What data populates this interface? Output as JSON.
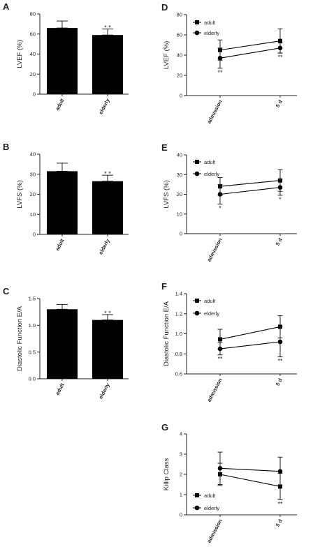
{
  "chart_data": [
    {
      "id": "A",
      "panel_label": "A",
      "type": "bar",
      "categories": [
        "adult",
        "elderly"
      ],
      "values": [
        66,
        59
      ],
      "errors": [
        7,
        6
      ],
      "ylabel": "LVEF (%)",
      "ylim": [
        0,
        80
      ],
      "yticks": [
        "0",
        "20",
        "40",
        "60",
        "80"
      ],
      "annotations": [
        {
          "category": "elderly",
          "text": "* *"
        }
      ]
    },
    {
      "id": "B",
      "panel_label": "B",
      "type": "bar",
      "categories": [
        "adult",
        "elderly"
      ],
      "values": [
        31.5,
        26.5
      ],
      "errors": [
        4,
        3
      ],
      "ylabel": "LVFS (%)",
      "ylim": [
        0,
        40
      ],
      "yticks": [
        "0",
        "10",
        "20",
        "30",
        "40"
      ],
      "annotations": [
        {
          "category": "elderly",
          "text": "* *"
        }
      ]
    },
    {
      "id": "C",
      "panel_label": "C",
      "type": "bar",
      "categories": [
        "adult",
        "elderly"
      ],
      "values": [
        1.3,
        1.1
      ],
      "errors": [
        0.09,
        0.1
      ],
      "ylabel": "Diastolic Function E/A",
      "ylim": [
        0,
        1.5
      ],
      "yticks": [
        "0.0",
        "0.5",
        "1.0",
        "1.5"
      ],
      "annotations": [
        {
          "category": "elderly",
          "text": "*  *"
        }
      ]
    },
    {
      "id": "D",
      "panel_label": "D",
      "type": "line",
      "x": [
        "admission",
        "5 d"
      ],
      "series": [
        {
          "name": "adult",
          "marker": "square",
          "values": [
            45,
            54
          ],
          "errors": [
            10,
            12
          ]
        },
        {
          "name": "elderly",
          "marker": "circle",
          "values": [
            37,
            47
          ],
          "errors": [
            10,
            5
          ]
        }
      ],
      "ylabel": "LVEF (%)",
      "ylim": [
        0,
        80
      ],
      "yticks": [
        "0",
        "20",
        "40",
        "60",
        "80"
      ],
      "annotations": [
        {
          "x": "admission",
          "text": "**"
        },
        {
          "x": "5 d",
          "text": "**"
        }
      ]
    },
    {
      "id": "E",
      "panel_label": "E",
      "type": "line",
      "x": [
        "admission",
        "5 d"
      ],
      "series": [
        {
          "name": "adult",
          "marker": "square",
          "values": [
            24,
            27
          ],
          "errors": [
            4.5,
            5.5
          ]
        },
        {
          "name": "elderly",
          "marker": "circle",
          "values": [
            20,
            23.5
          ],
          "errors": [
            5,
            4
          ]
        }
      ],
      "ylabel": "LVFS (%)",
      "ylim": [
        0,
        40
      ],
      "yticks": [
        "0",
        "10",
        "20",
        "30",
        "40"
      ],
      "annotations": [
        {
          "x": "admission",
          "text": "*"
        },
        {
          "x": "5 d",
          "text": "*"
        }
      ]
    },
    {
      "id": "F",
      "panel_label": "F",
      "type": "line",
      "x": [
        "admission",
        "5 d"
      ],
      "series": [
        {
          "name": "adult",
          "marker": "square",
          "values": [
            0.945,
            1.07
          ],
          "errors": [
            0.1,
            0.11
          ]
        },
        {
          "name": "elderly",
          "marker": "circle",
          "values": [
            0.85,
            0.92
          ],
          "errors": [
            0.06,
            0.15
          ]
        }
      ],
      "ylabel": "Diastolic Function E/A",
      "ylim": [
        0.6,
        1.4
      ],
      "yticks": [
        "0.6",
        "0.8",
        "1.0",
        "1.2",
        "1.4"
      ],
      "annotations": [
        {
          "x": "admission",
          "text": "**"
        },
        {
          "x": "5 d",
          "text": "**"
        }
      ]
    },
    {
      "id": "G",
      "panel_label": "G",
      "type": "line",
      "x": [
        "admission",
        "5 d"
      ],
      "series": [
        {
          "name": "adult",
          "marker": "square",
          "values": [
            2.0,
            1.4
          ],
          "errors": [
            0.55,
            0.65
          ]
        },
        {
          "name": "elderly",
          "marker": "circle",
          "values": [
            2.3,
            2.15
          ],
          "errors": [
            0.8,
            0.7
          ]
        }
      ],
      "ylabel": "Killip Class",
      "ylim": [
        0,
        4
      ],
      "yticks": [
        "0",
        "1",
        "2",
        "3",
        "4"
      ],
      "annotations": [
        {
          "x": "5 d",
          "text": "**"
        }
      ]
    }
  ]
}
